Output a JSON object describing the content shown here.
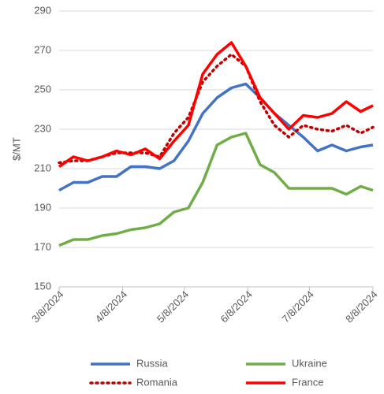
{
  "chart_data": {
    "type": "line",
    "y_label": "$/MT",
    "x": [
      "3/8/2024",
      "3/15/2024",
      "3/22/2024",
      "3/29/2024",
      "4/5/2024",
      "4/12/2024",
      "4/19/2024",
      "4/26/2024",
      "5/3/2024",
      "5/10/2024",
      "5/17/2024",
      "5/24/2024",
      "5/31/2024",
      "6/7/2024",
      "6/14/2024",
      "6/21/2024",
      "6/28/2024",
      "7/5/2024",
      "7/12/2024",
      "7/19/2024",
      "7/26/2024",
      "8/2/2024",
      "8/8/2024"
    ],
    "series": [
      {
        "name": "Russia",
        "color": "#4472c4",
        "dash": false,
        "values": [
          199,
          203,
          203,
          206,
          206,
          211,
          211,
          210,
          214,
          224,
          238,
          246,
          251,
          253,
          246,
          238,
          232,
          226,
          219,
          222,
          219,
          221,
          222
        ]
      },
      {
        "name": "Ukraine",
        "color": "#70ad47",
        "dash": false,
        "values": [
          171,
          174,
          174,
          176,
          177,
          179,
          180,
          182,
          188,
          190,
          203,
          222,
          226,
          228,
          212,
          208,
          200,
          200,
          200,
          200,
          197,
          201,
          199
        ]
      },
      {
        "name": "Romania",
        "color": "#c00000",
        "dash": true,
        "values": [
          213,
          214,
          214,
          216,
          218,
          218,
          218,
          216,
          228,
          236,
          254,
          262,
          268,
          262,
          244,
          232,
          226,
          232,
          230,
          229,
          232,
          228,
          231
        ]
      },
      {
        "name": "France",
        "color": "#ff0000",
        "dash": false,
        "values": [
          211,
          216,
          214,
          216,
          219,
          217,
          220,
          215,
          224,
          232,
          258,
          268,
          274,
          262,
          246,
          238,
          230,
          237,
          236,
          238,
          244,
          239,
          242
        ]
      }
    ],
    "ylim": [
      150,
      290
    ],
    "yticks": [
      150,
      170,
      190,
      210,
      230,
      250,
      270,
      290
    ],
    "xlim": [
      "3/8/2024",
      "8/8/2024"
    ],
    "xticks": [
      "3/8/2024",
      "4/8/2024",
      "5/8/2024",
      "6/8/2024",
      "7/8/2024",
      "8/8/2024"
    ],
    "grid": true
  }
}
